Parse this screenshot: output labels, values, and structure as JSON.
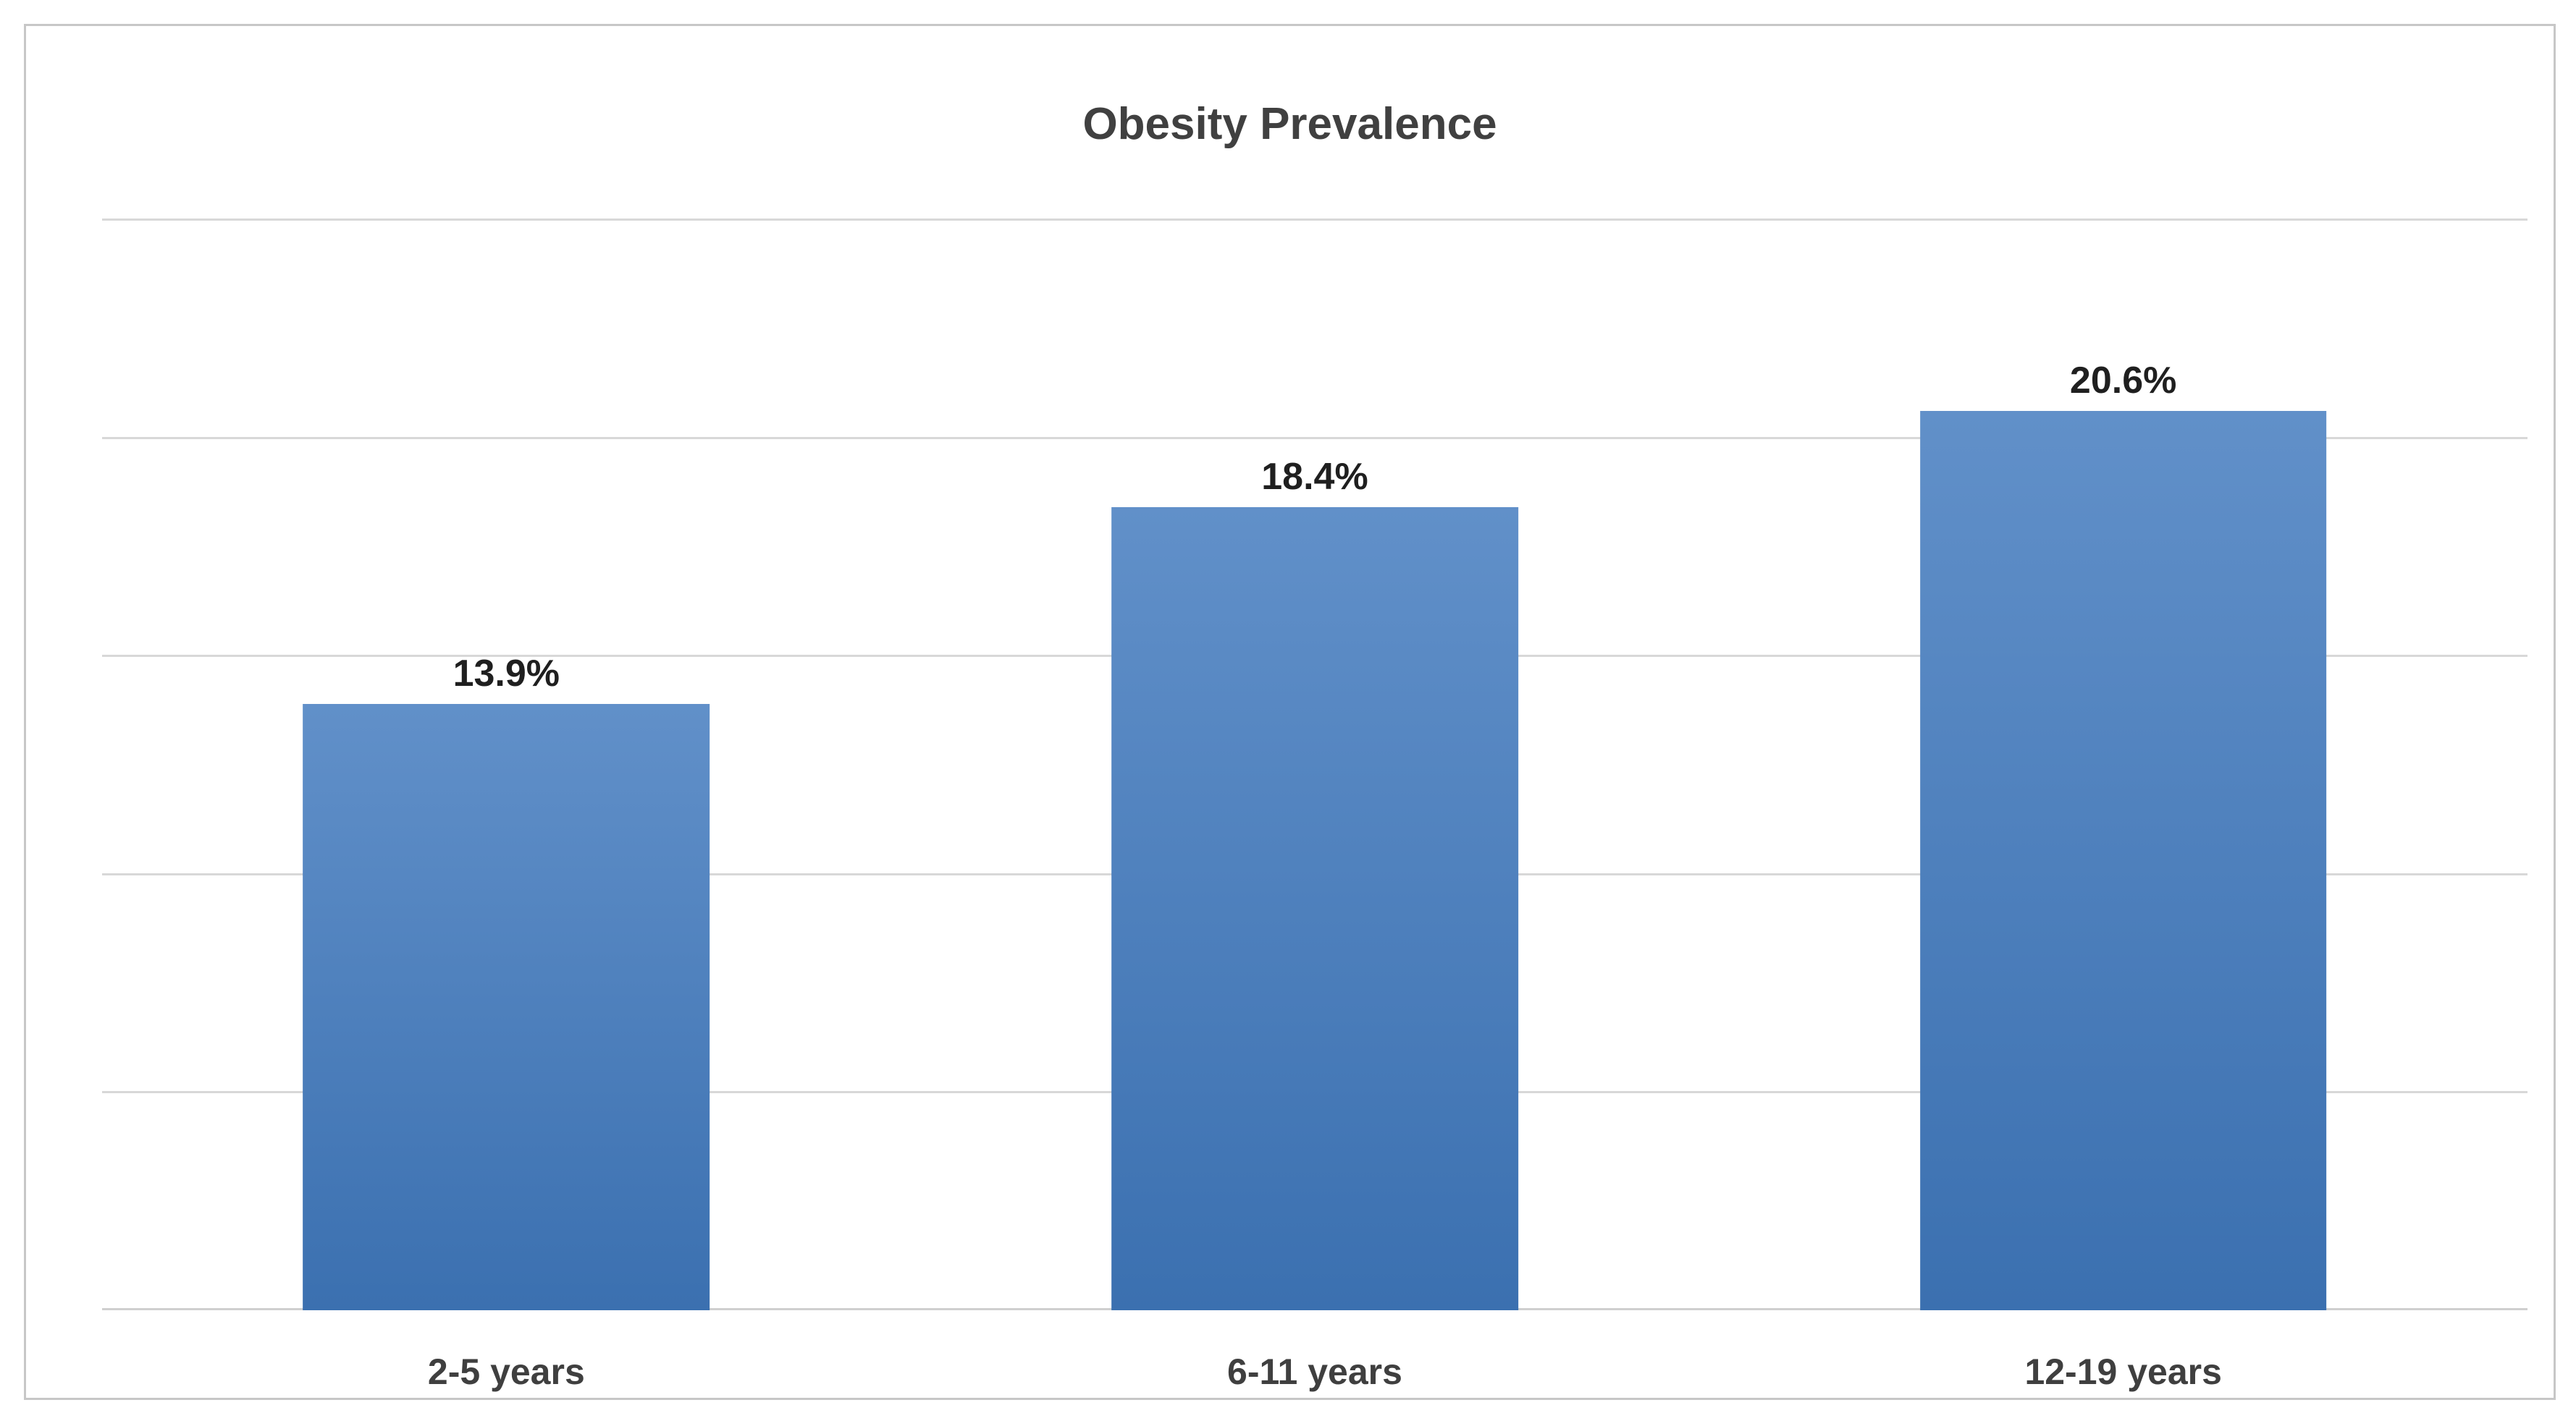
{
  "chart_data": {
    "type": "bar",
    "title": "Obesity Prevalence",
    "categories": [
      "2-5 years",
      "6-11 years",
      "12-19 years"
    ],
    "values": [
      13.9,
      18.4,
      20.6
    ],
    "data_labels": [
      "13.9%",
      "18.4%",
      "20.6%"
    ],
    "xlabel": "",
    "ylabel": "",
    "ylim": [
      0,
      25
    ],
    "gridline_step": 5,
    "grid": true,
    "legend": false,
    "y_tick_labels_visible": false,
    "colors": {
      "bar_top": "#6190c9",
      "bar_bottom": "#3b70b0",
      "gridline": "#d8d8d8",
      "axis_line": "#cfcfcf",
      "title_text": "#404040",
      "value_label_text": "#1f1f1f",
      "category_label_text": "#3f3f3f",
      "frame_border": "#c7c7c7",
      "background": "#ffffff"
    }
  }
}
